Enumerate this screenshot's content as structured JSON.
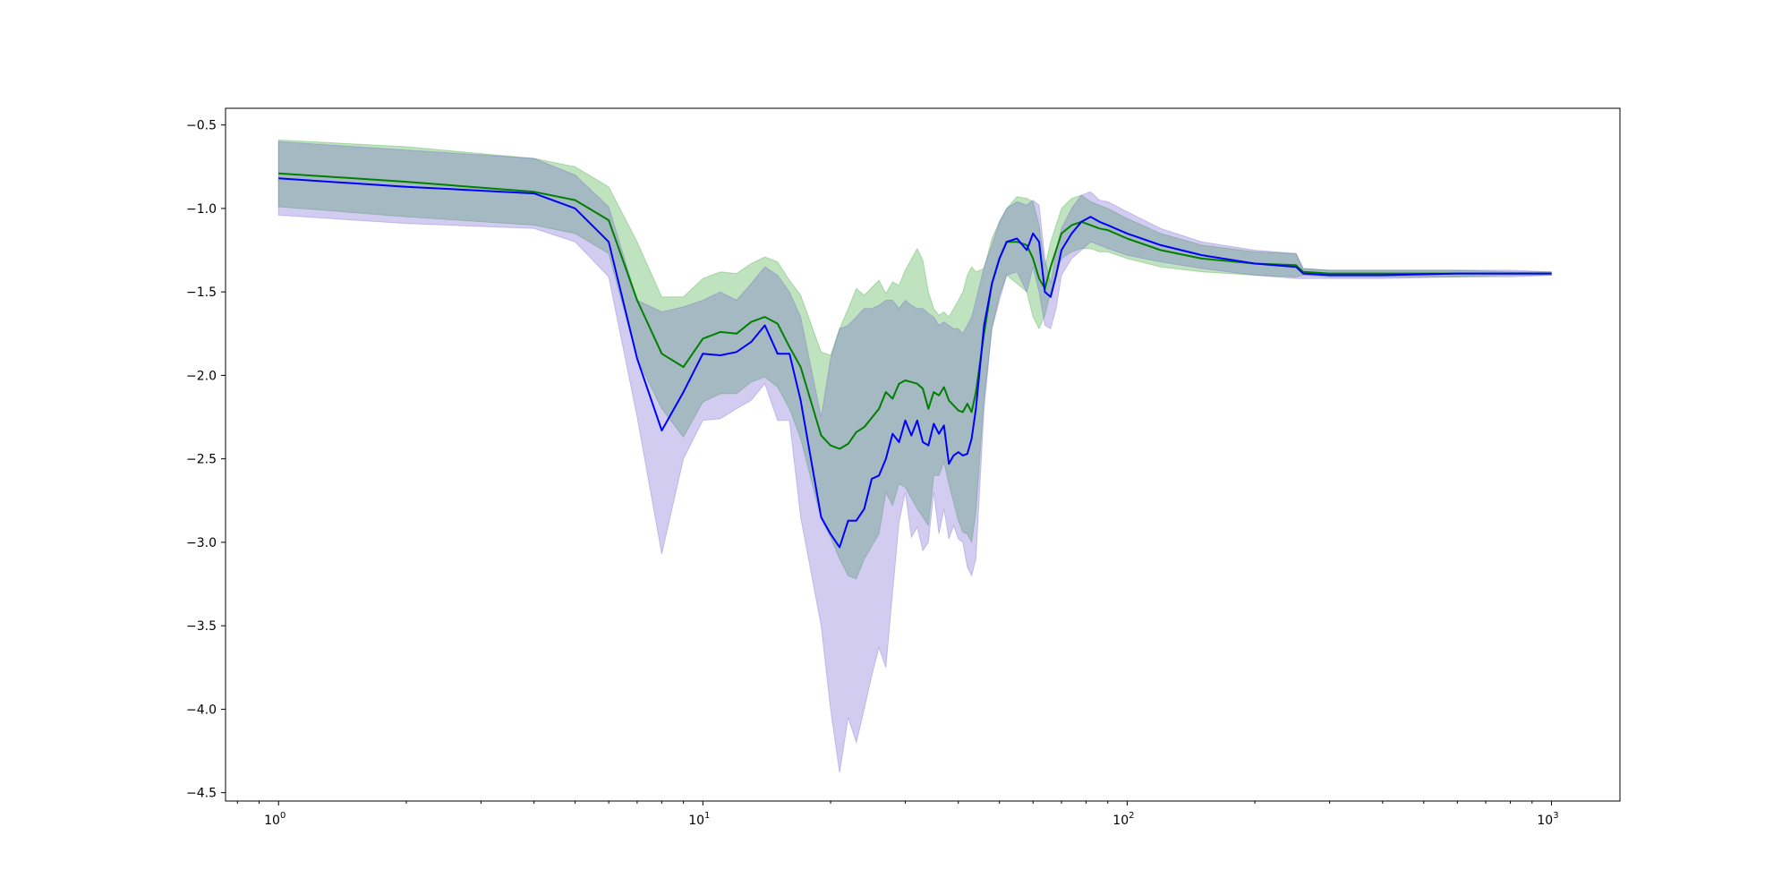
{
  "chart_data": {
    "type": "line",
    "title": "",
    "xlabel": "",
    "ylabel": "",
    "xscale": "log",
    "xlim": [
      0.75,
      1450
    ],
    "ylim": [
      -4.55,
      -0.4
    ],
    "grid": false,
    "legend": "none",
    "yticks": [
      {
        "value": -0.5,
        "label": "−0.5"
      },
      {
        "value": -1.0,
        "label": "−1.0"
      },
      {
        "value": -1.5,
        "label": "−1.5"
      },
      {
        "value": -2.0,
        "label": "−2.0"
      },
      {
        "value": -2.5,
        "label": "−2.5"
      },
      {
        "value": -3.0,
        "label": "−3.0"
      },
      {
        "value": -3.5,
        "label": "−3.5"
      },
      {
        "value": -4.0,
        "label": "−4.0"
      },
      {
        "value": -4.5,
        "label": "−4.5"
      }
    ],
    "xticks": [
      {
        "value": 1,
        "base": "10",
        "exp": "0"
      },
      {
        "value": 10,
        "base": "10",
        "exp": "1"
      },
      {
        "value": 100,
        "base": "10",
        "exp": "2"
      },
      {
        "value": 1000,
        "base": "10",
        "exp": "3"
      }
    ],
    "series": [
      {
        "color": "#008000",
        "band_color": "#2ca02c",
        "x": [
          1,
          2,
          4,
          5,
          6,
          7,
          8,
          9,
          10,
          11,
          12,
          13,
          14,
          15,
          16,
          17,
          19,
          20,
          21,
          22,
          23,
          24,
          26,
          27,
          28,
          29,
          30,
          32,
          33,
          34,
          35,
          36,
          37,
          38,
          40,
          41,
          42,
          43,
          44,
          46,
          48,
          50,
          52,
          55,
          58,
          60,
          62,
          64,
          66,
          68,
          70,
          74,
          78,
          82,
          86,
          90,
          100,
          120,
          150,
          200,
          250,
          260,
          300,
          400,
          600,
          800,
          1000
        ],
        "y": [
          -0.79,
          -0.84,
          -0.9,
          -0.95,
          -1.07,
          -1.55,
          -1.87,
          -1.95,
          -1.78,
          -1.74,
          -1.75,
          -1.68,
          -1.65,
          -1.69,
          -1.83,
          -1.95,
          -2.36,
          -2.42,
          -2.44,
          -2.41,
          -2.34,
          -2.31,
          -2.2,
          -2.1,
          -2.14,
          -2.05,
          -2.03,
          -2.05,
          -2.08,
          -2.2,
          -2.1,
          -2.12,
          -2.07,
          -2.15,
          -2.21,
          -2.22,
          -2.17,
          -2.22,
          -2.1,
          -1.75,
          -1.45,
          -1.3,
          -1.2,
          -1.2,
          -1.22,
          -1.3,
          -1.42,
          -1.48,
          -1.35,
          -1.25,
          -1.15,
          -1.1,
          -1.08,
          -1.1,
          -1.12,
          -1.13,
          -1.18,
          -1.25,
          -1.3,
          -1.33,
          -1.34,
          -1.38,
          -1.39,
          -1.39,
          -1.39,
          -1.39,
          -1.39
        ],
        "upper": [
          -0.59,
          -0.63,
          -0.7,
          -0.75,
          -0.87,
          -1.2,
          -1.53,
          -1.53,
          -1.42,
          -1.38,
          -1.39,
          -1.33,
          -1.29,
          -1.32,
          -1.43,
          -1.52,
          -1.86,
          -1.88,
          -1.72,
          -1.6,
          -1.48,
          -1.52,
          -1.43,
          -1.51,
          -1.44,
          -1.46,
          -1.37,
          -1.24,
          -1.31,
          -1.5,
          -1.6,
          -1.64,
          -1.62,
          -1.65,
          -1.55,
          -1.5,
          -1.4,
          -1.35,
          -1.38,
          -1.36,
          -1.18,
          -1.08,
          -1.0,
          -0.93,
          -0.94,
          -0.96,
          -1.1,
          -1.35,
          -1.2,
          -1.1,
          -1.0,
          -0.94,
          -0.92,
          -0.96,
          -0.98,
          -1.0,
          -1.06,
          -1.15,
          -1.22,
          -1.26,
          -1.27,
          -1.36,
          -1.37,
          -1.37,
          -1.37,
          -1.38,
          -1.38
        ],
        "lower": [
          -0.99,
          -1.05,
          -1.1,
          -1.15,
          -1.27,
          -1.9,
          -2.2,
          -2.37,
          -2.16,
          -2.11,
          -2.11,
          -2.04,
          -2.01,
          -2.07,
          -2.2,
          -2.38,
          -2.86,
          -2.97,
          -3.1,
          -3.2,
          -3.22,
          -3.1,
          -2.95,
          -2.7,
          -2.78,
          -2.65,
          -2.67,
          -2.8,
          -2.85,
          -2.9,
          -2.6,
          -2.6,
          -2.52,
          -2.65,
          -2.87,
          -2.94,
          -2.95,
          -3.0,
          -2.82,
          -2.14,
          -1.72,
          -1.52,
          -1.4,
          -1.45,
          -1.5,
          -1.65,
          -1.72,
          -1.64,
          -1.5,
          -1.4,
          -1.3,
          -1.26,
          -1.24,
          -1.24,
          -1.26,
          -1.26,
          -1.3,
          -1.35,
          -1.38,
          -1.4,
          -1.41,
          -1.4,
          -1.41,
          -1.41,
          -1.41,
          -1.4,
          -1.4
        ]
      },
      {
        "color": "#0000ff",
        "band_color": "#6a5acd",
        "x": [
          1,
          2,
          4,
          5,
          6,
          7,
          8,
          9,
          10,
          11,
          12,
          13,
          14,
          15,
          16,
          17,
          19,
          20,
          21,
          22,
          23,
          24,
          25,
          26,
          27,
          28,
          29,
          30,
          31,
          32,
          33,
          34,
          35,
          36,
          37,
          38,
          39,
          40,
          41,
          42,
          43,
          44,
          46,
          48,
          50,
          52,
          55,
          58,
          60,
          62,
          64,
          66,
          68,
          70,
          74,
          78,
          82,
          86,
          90,
          100,
          120,
          150,
          200,
          250,
          260,
          300,
          400,
          600,
          800,
          1000
        ],
        "y": [
          -0.82,
          -0.87,
          -0.91,
          -1.0,
          -1.2,
          -1.9,
          -2.33,
          -2.1,
          -1.87,
          -1.88,
          -1.86,
          -1.8,
          -1.7,
          -1.87,
          -1.87,
          -2.15,
          -2.85,
          -2.95,
          -3.03,
          -2.87,
          -2.87,
          -2.8,
          -2.62,
          -2.6,
          -2.5,
          -2.35,
          -2.4,
          -2.27,
          -2.36,
          -2.27,
          -2.4,
          -2.42,
          -2.29,
          -2.35,
          -2.3,
          -2.53,
          -2.48,
          -2.46,
          -2.48,
          -2.47,
          -2.38,
          -2.2,
          -1.7,
          -1.45,
          -1.3,
          -1.2,
          -1.18,
          -1.25,
          -1.15,
          -1.2,
          -1.5,
          -1.53,
          -1.4,
          -1.25,
          -1.15,
          -1.08,
          -1.05,
          -1.08,
          -1.1,
          -1.15,
          -1.22,
          -1.28,
          -1.33,
          -1.35,
          -1.39,
          -1.4,
          -1.4,
          -1.39,
          -1.39,
          -1.39
        ],
        "upper": [
          -0.6,
          -0.65,
          -0.7,
          -0.8,
          -0.99,
          -1.55,
          -1.62,
          -1.59,
          -1.55,
          -1.5,
          -1.55,
          -1.45,
          -1.35,
          -1.4,
          -1.5,
          -1.65,
          -2.25,
          -1.9,
          -1.72,
          -1.7,
          -1.65,
          -1.6,
          -1.6,
          -1.58,
          -1.55,
          -1.55,
          -1.6,
          -1.55,
          -1.58,
          -1.6,
          -1.6,
          -1.63,
          -1.65,
          -1.7,
          -1.68,
          -1.7,
          -1.72,
          -1.72,
          -1.75,
          -1.7,
          -1.65,
          -1.55,
          -1.35,
          -1.22,
          -1.08,
          -1.0,
          -0.96,
          -0.98,
          -0.95,
          -0.98,
          -1.3,
          -1.45,
          -1.25,
          -1.12,
          -1.0,
          -0.92,
          -0.9,
          -0.95,
          -0.96,
          -1.02,
          -1.12,
          -1.2,
          -1.25,
          -1.27,
          -1.36,
          -1.37,
          -1.37,
          -1.37,
          -1.37,
          -1.38
        ],
        "lower": [
          -1.04,
          -1.09,
          -1.12,
          -1.2,
          -1.41,
          -2.25,
          -3.07,
          -2.5,
          -2.27,
          -2.26,
          -2.2,
          -2.15,
          -2.05,
          -2.27,
          -2.27,
          -2.85,
          -3.5,
          -4.0,
          -4.38,
          -4.05,
          -4.2,
          -4.0,
          -3.8,
          -3.63,
          -3.75,
          -3.3,
          -2.88,
          -2.7,
          -2.97,
          -2.91,
          -3.05,
          -3.0,
          -2.7,
          -2.95,
          -2.8,
          -2.98,
          -2.9,
          -2.98,
          -3.0,
          -3.15,
          -3.2,
          -3.1,
          -2.2,
          -1.72,
          -1.55,
          -1.4,
          -1.38,
          -1.5,
          -1.35,
          -1.5,
          -1.7,
          -1.72,
          -1.6,
          -1.4,
          -1.3,
          -1.25,
          -1.2,
          -1.22,
          -1.24,
          -1.28,
          -1.32,
          -1.36,
          -1.4,
          -1.42,
          -1.42,
          -1.42,
          -1.42,
          -1.41,
          -1.41,
          -1.4
        ]
      }
    ]
  }
}
